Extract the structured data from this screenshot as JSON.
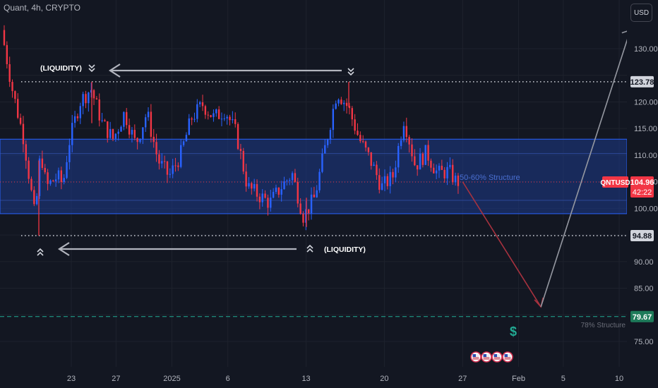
{
  "header": {
    "title": "Quant, 4h, CRYPTO",
    "currency_button": "USD"
  },
  "colors": {
    "background": "#131722",
    "up": "#2962ff",
    "down": "#f23645",
    "zone": "#1e3a8a",
    "grid": "#1e222d",
    "axis_text": "#b2b5be"
  },
  "chart_data": {
    "type": "candlestick",
    "symbol": "QNTUSD",
    "timeframe": "4h",
    "ylim": [
      72,
      137
    ],
    "y_ticks": [
      75.0,
      80.0,
      85.0,
      90.0,
      95.0,
      100.0,
      105.0,
      110.0,
      115.0,
      120.0,
      125.0,
      130.0
    ],
    "x_ticks": [
      "23",
      "27",
      "2025",
      "6",
      "13",
      "20",
      "27",
      "Feb",
      "5",
      "10"
    ],
    "x_tick_dates": [
      "2024-12-23",
      "2024-12-27",
      "2025-01-01",
      "2025-01-06",
      "2025-01-13",
      "2025-01-20",
      "2025-01-27",
      "2025-02-01",
      "2025-02-05",
      "2025-02-10"
    ],
    "price_path": [
      [
        "2024-12-17",
        133.5
      ],
      [
        "2024-12-18",
        122
      ],
      [
        "2024-12-19",
        113
      ],
      [
        "2024-12-20",
        98
      ],
      [
        "2024-12-20 12:00",
        111
      ],
      [
        "2024-12-21",
        104
      ],
      [
        "2024-12-22",
        106
      ],
      [
        "2024-12-22 12:00",
        104.5
      ],
      [
        "2024-12-23",
        112
      ],
      [
        "2024-12-24",
        120
      ],
      [
        "2024-12-25",
        122.5
      ],
      [
        "2024-12-26",
        116
      ],
      [
        "2024-12-27",
        113
      ],
      [
        "2024-12-28",
        118
      ],
      [
        "2024-12-29",
        112
      ],
      [
        "2024-12-30",
        118
      ],
      [
        "2024-12-31",
        109
      ],
      [
        "2025-01-01",
        106
      ],
      [
        "2025-01-02",
        110
      ],
      [
        "2025-01-03",
        117
      ],
      [
        "2025-01-04",
        119.5
      ],
      [
        "2025-01-05",
        117
      ],
      [
        "2025-01-06",
        118.5
      ],
      [
        "2025-01-07",
        114
      ],
      [
        "2025-01-08",
        104
      ],
      [
        "2025-01-09",
        102.5
      ],
      [
        "2025-01-10",
        101
      ],
      [
        "2025-01-11",
        104
      ],
      [
        "2025-01-12",
        106.5
      ],
      [
        "2025-01-13",
        98.5
      ],
      [
        "2025-01-14",
        102
      ],
      [
        "2025-01-15",
        112
      ],
      [
        "2025-01-16",
        122
      ],
      [
        "2025-01-17",
        119
      ],
      [
        "2025-01-18",
        113
      ],
      [
        "2025-01-19",
        109
      ],
      [
        "2025-01-20",
        104
      ],
      [
        "2025-01-21",
        106
      ],
      [
        "2025-01-22",
        117
      ],
      [
        "2025-01-23",
        108
      ],
      [
        "2025-01-24",
        110.5
      ],
      [
        "2025-01-25",
        106.5
      ],
      [
        "2025-01-26",
        107
      ],
      [
        "2025-01-26 16:00",
        105
      ]
    ],
    "current_price": 104.96,
    "countdown": "42:22",
    "price_labels": [
      123.78,
      94.88,
      79.67
    ],
    "zone": {
      "from": 99.0,
      "to": 113.0,
      "label": "50-60% Structure"
    },
    "target_level": {
      "value": 79.67,
      "label": "78% Structure"
    },
    "liquidity_top": {
      "price": 123.78,
      "label": "(LIQUIDITY)"
    },
    "liquidity_bottom": {
      "price": 94.88,
      "label": "(LIQUIDITY)"
    },
    "projection": [
      [
        "2025-01-27",
        105
      ],
      [
        "2025-02-03",
        81.5
      ],
      [
        "2025-02-11",
        133.5
      ]
    ],
    "dollar_marker": "$",
    "event_flags": 4
  }
}
